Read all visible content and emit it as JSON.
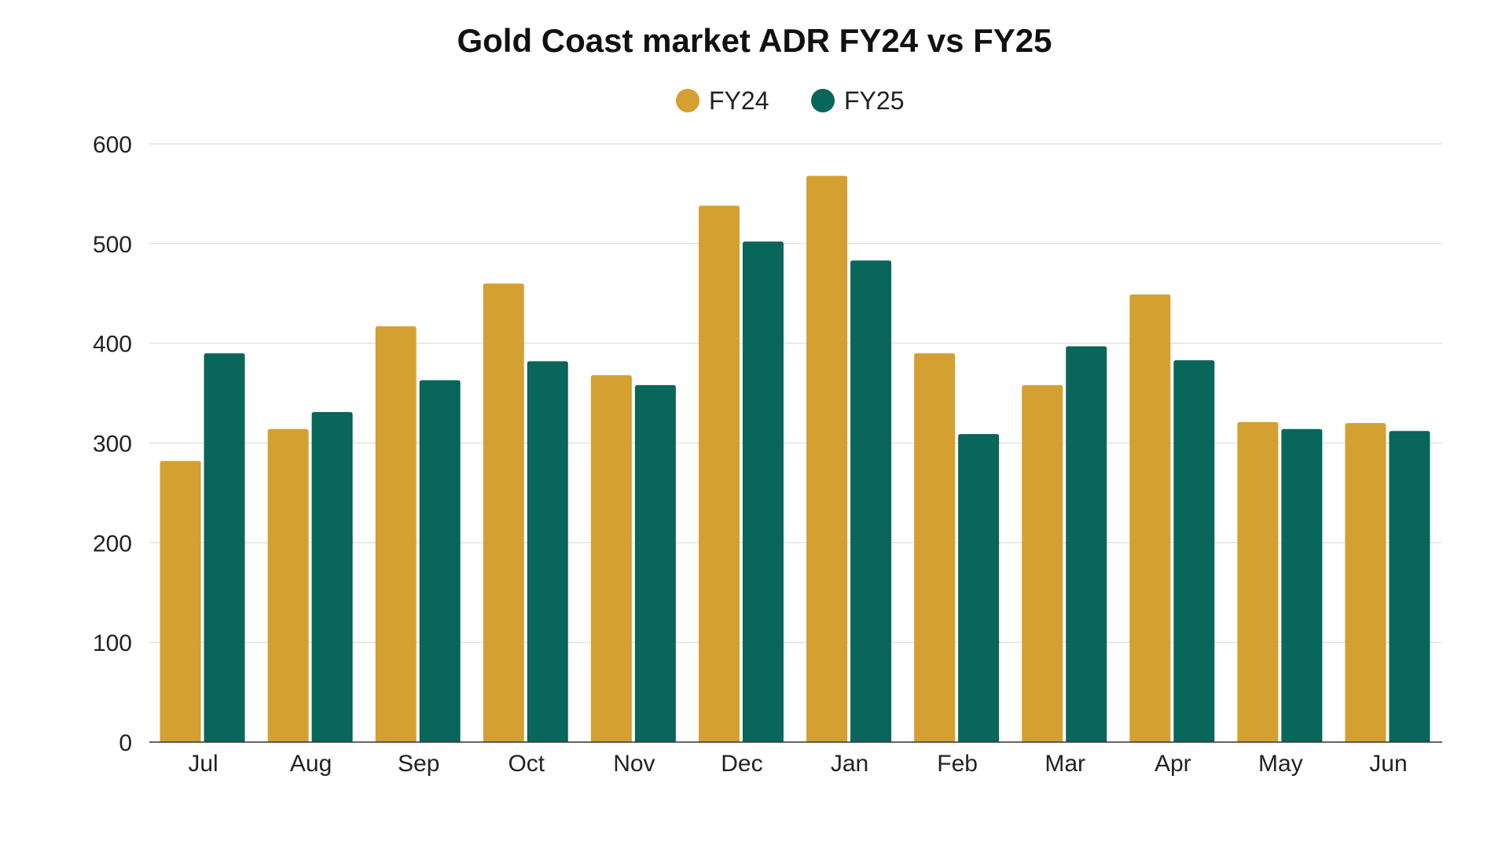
{
  "chart_data": {
    "type": "bar",
    "title": "Gold Coast market ADR FY24 vs FY25",
    "xlabel": "",
    "ylabel": "",
    "ylim": [
      0,
      600
    ],
    "yticks": [
      0,
      100,
      200,
      300,
      400,
      500,
      600
    ],
    "grid": true,
    "legend_position": "top-center",
    "categories": [
      "Jul",
      "Aug",
      "Sep",
      "Oct",
      "Nov",
      "Dec",
      "Jan",
      "Feb",
      "Mar",
      "Apr",
      "May",
      "Jun"
    ],
    "series": [
      {
        "name": "FY24",
        "color": "#D4A032",
        "values": [
          282,
          314,
          417,
          460,
          368,
          538,
          568,
          390,
          358,
          449,
          321,
          320
        ]
      },
      {
        "name": "FY25",
        "color": "#08665A",
        "values": [
          390,
          331,
          363,
          382,
          358,
          502,
          483,
          309,
          397,
          383,
          314,
          312
        ]
      }
    ]
  }
}
